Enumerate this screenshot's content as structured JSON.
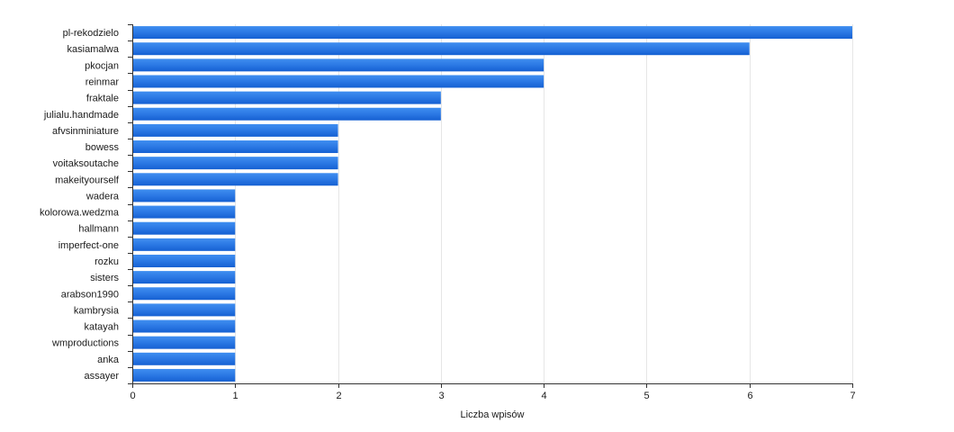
{
  "chart_data": {
    "type": "bar",
    "orientation": "horizontal",
    "categories": [
      "pl-rekodzielo",
      "kasiamalwa",
      "pkocjan",
      "reinmar",
      "fraktale",
      "julialu.handmade",
      "afvsinminiature",
      "bowess",
      "voitaksoutache",
      "makeityourself",
      "wadera",
      "kolorowa.wedzma",
      "hallmann",
      "imperfect-one",
      "rozku",
      "sisters",
      "arabson1990",
      "kambrysia",
      "katayah",
      "wmproductions",
      "anka",
      "assayer"
    ],
    "values": [
      7,
      6,
      4,
      4,
      3,
      3,
      2,
      2,
      2,
      2,
      1,
      1,
      1,
      1,
      1,
      1,
      1,
      1,
      1,
      1,
      1,
      1
    ],
    "xlabel": "Liczba wpisów",
    "xlim": [
      0,
      7
    ],
    "xticks": [
      "0",
      "1",
      "2",
      "3",
      "4",
      "5",
      "6",
      "7"
    ],
    "grid": true,
    "colors": {
      "bar_top": "#3f8ef0",
      "bar_bottom": "#1560d2",
      "bar_mid": "#2b78e4"
    }
  }
}
